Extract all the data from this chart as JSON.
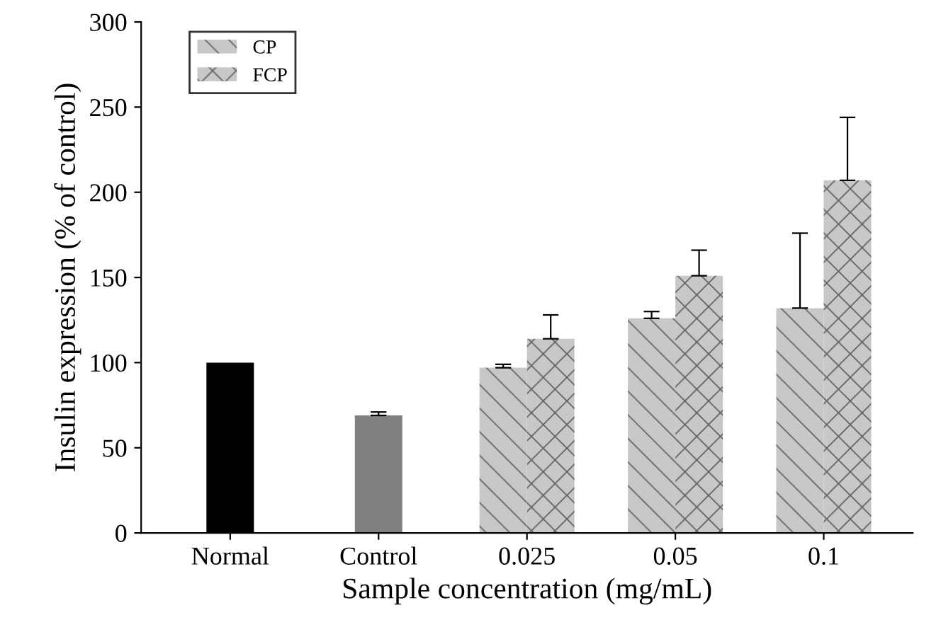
{
  "chart_data": {
    "type": "bar",
    "xlabel": "Sample concentration (mg/mL)",
    "ylabel": "Insulin expression (% of control)",
    "categories": [
      "Normal",
      "Control",
      "0.025",
      "0.05",
      "0.1"
    ],
    "series": [
      {
        "colors": [
          "#000000",
          "#808080",
          null,
          null,
          null
        ],
        "values": [
          100,
          69,
          null,
          null,
          null
        ],
        "errors": [
          null,
          2,
          null,
          null,
          null
        ]
      },
      {
        "name": "CP",
        "color": "#c8c8c8",
        "values": [
          null,
          null,
          97,
          126,
          132
        ],
        "errors": [
          null,
          null,
          2,
          4,
          44
        ]
      },
      {
        "name": "FCP",
        "color": "#c8c8c8",
        "values": [
          null,
          null,
          114,
          151,
          207
        ],
        "errors": [
          null,
          null,
          14,
          15,
          37
        ]
      }
    ],
    "ylim": [
      0,
      300
    ],
    "yticks": [
      0,
      50,
      100,
      150,
      200,
      250,
      300
    ],
    "grid": false,
    "legend": "top left"
  }
}
